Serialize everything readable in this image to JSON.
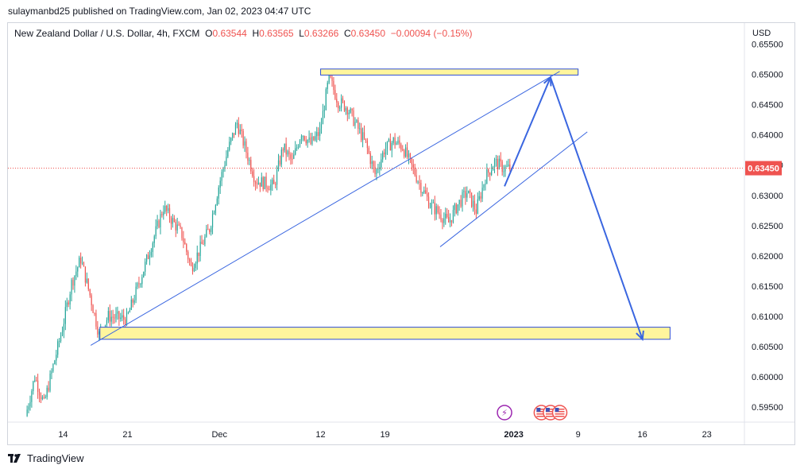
{
  "header": {
    "published": "sulaymanbd25 published on TradingView.com, Jan 02, 2023 04:47 UTC"
  },
  "legend": {
    "symbol": "New Zealand Dollar / U.S. Dollar, 4h, FXCM",
    "o_label": "O",
    "o_value": "0.63544",
    "h_label": "H",
    "h_value": "0.63565",
    "l_label": "L",
    "l_value": "0.63266",
    "c_label": "C",
    "c_value": "0.63450",
    "change": "−0.00094 (−0.15%)"
  },
  "footer": {
    "brand": "TradingView",
    "logo_icon": "tradingview-logo-icon"
  },
  "chart_data": {
    "type": "candlestick",
    "currency_label": "USD",
    "last_price": 0.6345,
    "last_price_label": "0.63450",
    "ylim": [
      0.5925,
      0.6585
    ],
    "y_ticks": [
      0.655,
      0.65,
      0.645,
      0.64,
      0.635,
      0.63,
      0.625,
      0.62,
      0.615,
      0.61,
      0.605,
      0.6,
      0.595
    ],
    "y_tick_labels": [
      "0.65500",
      "0.65000",
      "0.64500",
      "0.64000",
      "0.63500",
      "0.63000",
      "0.62500",
      "0.62000",
      "0.61500",
      "0.61000",
      "0.60500",
      "0.60000",
      "0.59500"
    ],
    "x_domain": [
      "2022-11-08",
      "2023-01-27"
    ],
    "x_ticks": [
      {
        "date": "2022-11-14",
        "label": "14"
      },
      {
        "date": "2022-11-21",
        "label": "21"
      },
      {
        "date": "2022-12-01",
        "label": "Dec"
      },
      {
        "date": "2022-12-12",
        "label": "12"
      },
      {
        "date": "2022-12-19",
        "label": "19"
      },
      {
        "date": "2023-01-02",
        "label": "2023"
      },
      {
        "date": "2023-01-09",
        "label": "9"
      },
      {
        "date": "2023-01-16",
        "label": "16"
      },
      {
        "date": "2023-01-23",
        "label": "23"
      }
    ],
    "colors": {
      "up": "#26a69a",
      "down": "#ef5350",
      "drawing": "#3a66e0",
      "zone_fill": "#fff59d",
      "zone_border": "#2f4fd4"
    },
    "price_path": [
      {
        "date": "2022-11-10",
        "price": 0.5935
      },
      {
        "date": "2022-11-11",
        "price": 0.6
      },
      {
        "date": "2022-11-12",
        "price": 0.5955
      },
      {
        "date": "2022-11-14",
        "price": 0.608
      },
      {
        "date": "2022-11-15",
        "price": 0.6155
      },
      {
        "date": "2022-11-16",
        "price": 0.6195
      },
      {
        "date": "2022-11-17",
        "price": 0.6135
      },
      {
        "date": "2022-11-18",
        "price": 0.607
      },
      {
        "date": "2022-11-19",
        "price": 0.61
      },
      {
        "date": "2022-11-21",
        "price": 0.6095
      },
      {
        "date": "2022-11-23",
        "price": 0.6185
      },
      {
        "date": "2022-11-25",
        "price": 0.628
      },
      {
        "date": "2022-11-27",
        "price": 0.6235
      },
      {
        "date": "2022-11-28",
        "price": 0.618
      },
      {
        "date": "2022-11-30",
        "price": 0.6245
      },
      {
        "date": "2022-12-01",
        "price": 0.6315
      },
      {
        "date": "2022-12-02",
        "price": 0.6375
      },
      {
        "date": "2022-12-03",
        "price": 0.642
      },
      {
        "date": "2022-12-05",
        "price": 0.6325
      },
      {
        "date": "2022-12-07",
        "price": 0.6315
      },
      {
        "date": "2022-12-08",
        "price": 0.638
      },
      {
        "date": "2022-12-09",
        "price": 0.6355
      },
      {
        "date": "2022-12-10",
        "price": 0.6405
      },
      {
        "date": "2022-12-11",
        "price": 0.6385
      },
      {
        "date": "2022-12-12",
        "price": 0.6405
      },
      {
        "date": "2022-12-13",
        "price": 0.6495
      },
      {
        "date": "2022-12-14",
        "price": 0.6455
      },
      {
        "date": "2022-12-15",
        "price": 0.6445
      },
      {
        "date": "2022-12-17",
        "price": 0.6385
      },
      {
        "date": "2022-12-18",
        "price": 0.6335
      },
      {
        "date": "2022-12-19",
        "price": 0.6375
      },
      {
        "date": "2022-12-20",
        "price": 0.639
      },
      {
        "date": "2022-12-21",
        "price": 0.638
      },
      {
        "date": "2022-12-23",
        "price": 0.6315
      },
      {
        "date": "2022-12-24",
        "price": 0.6285
      },
      {
        "date": "2022-12-26",
        "price": 0.6255
      },
      {
        "date": "2022-12-27",
        "price": 0.6285
      },
      {
        "date": "2022-12-28",
        "price": 0.6305
      },
      {
        "date": "2022-12-29",
        "price": 0.6275
      },
      {
        "date": "2022-12-30",
        "price": 0.633
      },
      {
        "date": "2022-12-31",
        "price": 0.6355
      },
      {
        "date": "2023-01-01",
        "price": 0.6345
      }
    ],
    "drawings": {
      "zones": [
        {
          "name": "resistance-zone",
          "x0": "2022-12-12",
          "x1": "2023-01-09",
          "y0": 0.6499,
          "y1": 0.6509
        },
        {
          "name": "support-zone",
          "x0": "2022-11-18",
          "x1": "2023-01-19",
          "y0": 0.6062,
          "y1": 0.6082
        }
      ],
      "trendlines": [
        {
          "name": "lower-trendline",
          "from": {
            "date": "2022-11-17",
            "price": 0.6052
          },
          "to": {
            "date": "2023-01-07",
            "price": 0.6505
          }
        },
        {
          "name": "channel-trendline",
          "from": {
            "date": "2022-12-25",
            "price": 0.6215
          },
          "to": {
            "date": "2023-01-10",
            "price": 0.6405
          }
        }
      ],
      "projection": {
        "name": "projection-arrow",
        "points": [
          {
            "date": "2023-01-01",
            "price": 0.6315
          },
          {
            "date": "2023-01-06",
            "price": 0.6495
          },
          {
            "date": "2023-01-16",
            "price": 0.6062
          }
        ]
      },
      "last_price_line": 0.6345
    },
    "events": [
      {
        "name": "dividend-event-icon",
        "date": "2023-01-01",
        "glyph": "⚡"
      },
      {
        "name": "us-flag-event-icon-1",
        "date": "2023-01-05"
      },
      {
        "name": "us-flag-event-icon-2",
        "date": "2023-01-06"
      },
      {
        "name": "us-flag-event-icon-3",
        "date": "2023-01-07"
      }
    ]
  }
}
